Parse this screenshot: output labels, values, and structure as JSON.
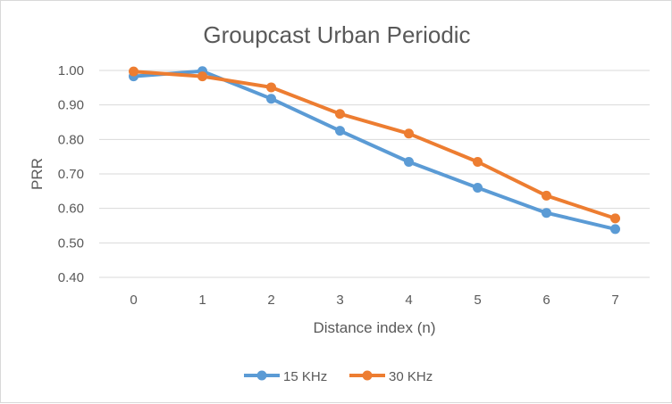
{
  "chart_data": {
    "type": "line",
    "title": "Groupcast Urban Periodic",
    "xlabel": "Distance index (n)",
    "ylabel": "PRR",
    "categories": [
      "0",
      "1",
      "2",
      "3",
      "4",
      "5",
      "6",
      "7"
    ],
    "ylim": [
      0.4,
      1.0
    ],
    "yticks": [
      "0.40",
      "0.50",
      "0.60",
      "0.70",
      "0.80",
      "0.90",
      "1.00"
    ],
    "ytick_values": [
      0.4,
      0.5,
      0.6,
      0.7,
      0.8,
      0.9,
      1.0
    ],
    "grid": true,
    "legend_position": "bottom",
    "series": [
      {
        "name": "15 KHz",
        "color": "#5b9bd5",
        "values": [
          0.983,
          0.998,
          0.918,
          0.825,
          0.735,
          0.66,
          0.587,
          0.54
        ]
      },
      {
        "name": "30 KHz",
        "color": "#ed7d31",
        "values": [
          0.997,
          0.983,
          0.951,
          0.874,
          0.817,
          0.735,
          0.637,
          0.571
        ]
      }
    ]
  }
}
